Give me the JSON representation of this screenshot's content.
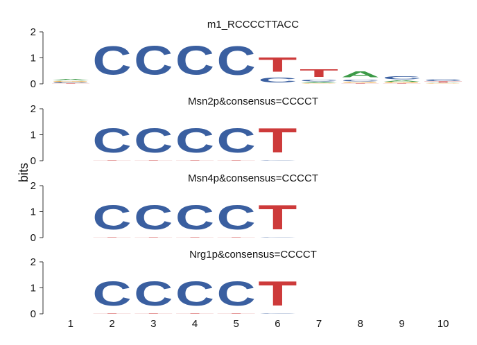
{
  "colors": {
    "A": "#3c9a47",
    "C": "#3a5fa0",
    "G": "#f0a636",
    "T": "#cd3a3a"
  },
  "chart_data": {
    "type": "sequence-logo",
    "ylabel": "bits",
    "ylim": [
      0,
      2
    ],
    "yticks": [
      "0",
      "1",
      "2"
    ],
    "xticks": [
      "1",
      "2",
      "3",
      "4",
      "5",
      "6",
      "7",
      "8",
      "9",
      "10"
    ],
    "panels": [
      {
        "title": "m1_RCCCCTTACC",
        "positions": [
          {
            "pos": 1,
            "letters": [
              {
                "b": "T",
                "h": 0.02
              },
              {
                "b": "C",
                "h": 0.04
              },
              {
                "b": "G",
                "h": 0.05
              },
              {
                "b": "A",
                "h": 0.09
              }
            ]
          },
          {
            "pos": 2,
            "letters": [
              {
                "b": "T",
                "h": 0.01
              },
              {
                "b": "C",
                "h": 1.75
              }
            ]
          },
          {
            "pos": 3,
            "letters": [
              {
                "b": "G",
                "h": 0.01
              },
              {
                "b": "C",
                "h": 1.76
              }
            ]
          },
          {
            "pos": 4,
            "letters": [
              {
                "b": "G",
                "h": 0.01
              },
              {
                "b": "C",
                "h": 1.76
              }
            ]
          },
          {
            "pos": 5,
            "letters": [
              {
                "b": "C",
                "h": 1.78
              }
            ]
          },
          {
            "pos": 6,
            "letters": [
              {
                "b": "C",
                "h": 0.3
              },
              {
                "b": "T",
                "h": 0.88
              }
            ]
          },
          {
            "pos": 7,
            "letters": [
              {
                "b": "G",
                "h": 0.03
              },
              {
                "b": "A",
                "h": 0.05
              },
              {
                "b": "C",
                "h": 0.1
              },
              {
                "b": "T",
                "h": 0.46
              }
            ]
          },
          {
            "pos": 8,
            "letters": [
              {
                "b": "T",
                "h": 0.03
              },
              {
                "b": "G",
                "h": 0.04
              },
              {
                "b": "C",
                "h": 0.12
              },
              {
                "b": "A",
                "h": 0.35
              }
            ]
          },
          {
            "pos": 9,
            "letters": [
              {
                "b": "T",
                "h": 0.02
              },
              {
                "b": "G",
                "h": 0.04
              },
              {
                "b": "A",
                "h": 0.08
              },
              {
                "b": "C",
                "h": 0.2
              }
            ]
          },
          {
            "pos": 10,
            "letters": [
              {
                "b": "G",
                "h": 0.02
              },
              {
                "b": "A",
                "h": 0.03
              },
              {
                "b": "T",
                "h": 0.04
              },
              {
                "b": "C",
                "h": 0.1
              }
            ]
          }
        ]
      },
      {
        "title": "Msn2p&consensus=CCCCT",
        "positions": [
          {
            "pos": 2,
            "letters": [
              {
                "b": "T",
                "h": 0.02
              },
              {
                "b": "C",
                "h": 1.5
              }
            ]
          },
          {
            "pos": 3,
            "letters": [
              {
                "b": "T",
                "h": 0.02
              },
              {
                "b": "C",
                "h": 1.5
              }
            ]
          },
          {
            "pos": 4,
            "letters": [
              {
                "b": "T",
                "h": 0.02
              },
              {
                "b": "C",
                "h": 1.5
              }
            ]
          },
          {
            "pos": 5,
            "letters": [
              {
                "b": "T",
                "h": 0.02
              },
              {
                "b": "C",
                "h": 1.5
              }
            ]
          },
          {
            "pos": 6,
            "letters": [
              {
                "b": "C",
                "h": 0.03
              },
              {
                "b": "T",
                "h": 1.5
              }
            ]
          }
        ]
      },
      {
        "title": "Msn4p&consensus=CCCCT",
        "positions": [
          {
            "pos": 2,
            "letters": [
              {
                "b": "T",
                "h": 0.02
              },
              {
                "b": "C",
                "h": 1.5
              }
            ]
          },
          {
            "pos": 3,
            "letters": [
              {
                "b": "T",
                "h": 0.02
              },
              {
                "b": "C",
                "h": 1.5
              }
            ]
          },
          {
            "pos": 4,
            "letters": [
              {
                "b": "T",
                "h": 0.02
              },
              {
                "b": "C",
                "h": 1.5
              }
            ]
          },
          {
            "pos": 5,
            "letters": [
              {
                "b": "T",
                "h": 0.02
              },
              {
                "b": "C",
                "h": 1.5
              }
            ]
          },
          {
            "pos": 6,
            "letters": [
              {
                "b": "C",
                "h": 0.03
              },
              {
                "b": "T",
                "h": 1.5
              }
            ]
          }
        ]
      },
      {
        "title": "Nrg1p&consensus=CCCCT",
        "positions": [
          {
            "pos": 2,
            "letters": [
              {
                "b": "T",
                "h": 0.02
              },
              {
                "b": "C",
                "h": 1.5
              }
            ]
          },
          {
            "pos": 3,
            "letters": [
              {
                "b": "T",
                "h": 0.02
              },
              {
                "b": "C",
                "h": 1.5
              }
            ]
          },
          {
            "pos": 4,
            "letters": [
              {
                "b": "T",
                "h": 0.02
              },
              {
                "b": "C",
                "h": 1.5
              }
            ]
          },
          {
            "pos": 5,
            "letters": [
              {
                "b": "T",
                "h": 0.02
              },
              {
                "b": "C",
                "h": 1.5
              }
            ]
          },
          {
            "pos": 6,
            "letters": [
              {
                "b": "C",
                "h": 0.03
              },
              {
                "b": "T",
                "h": 1.5
              }
            ]
          }
        ]
      }
    ]
  }
}
